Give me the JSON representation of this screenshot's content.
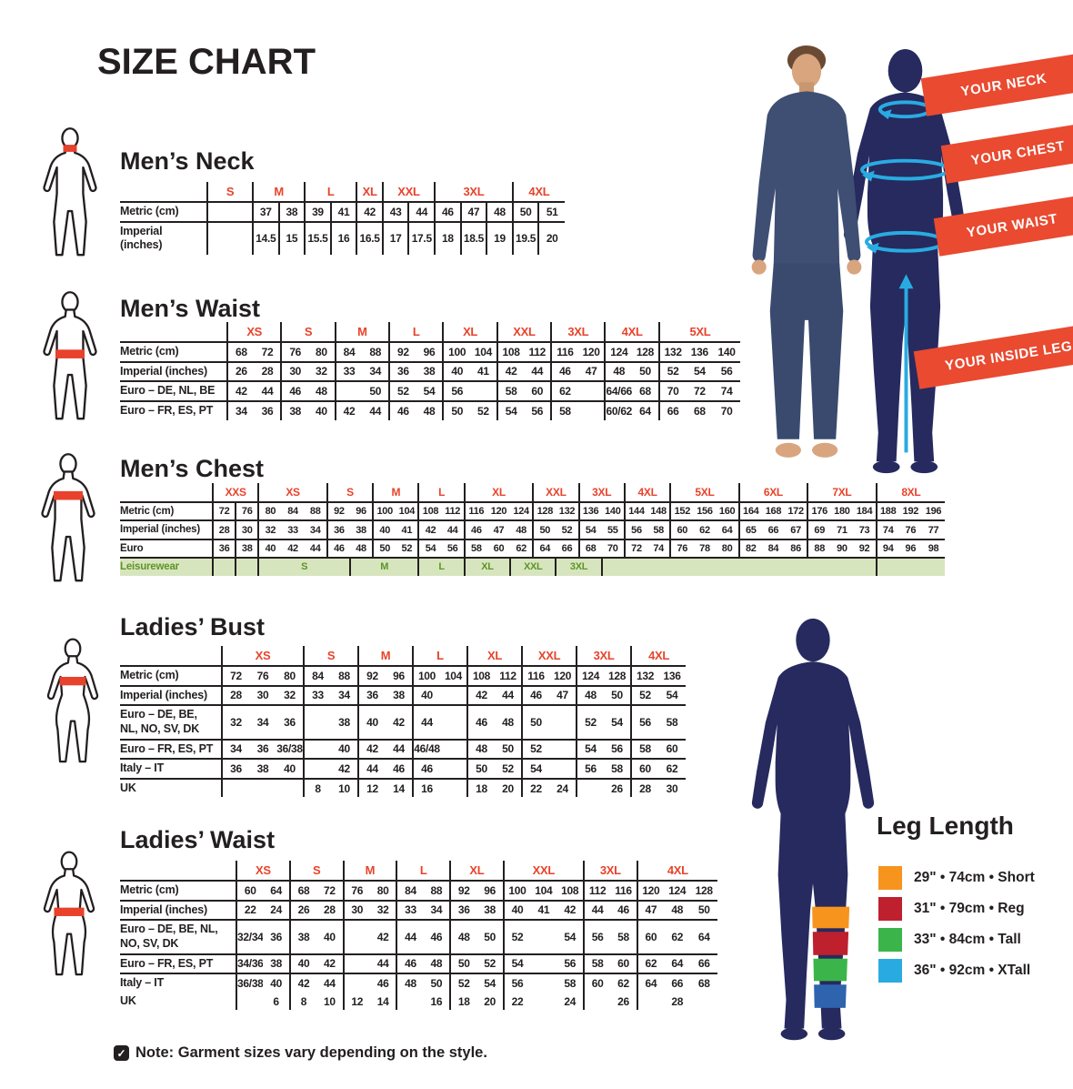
{
  "title": "SIZE CHART",
  "note": "Note: Garment sizes vary depending on the style.",
  "banners": [
    "YOUR NECK",
    "YOUR CHEST",
    "YOUR WAIST",
    "YOUR INSIDE LEG"
  ],
  "leg_length": {
    "title": "Leg Length",
    "items": [
      {
        "color": "#f7941e",
        "label": "29\" • 74cm • Short"
      },
      {
        "color": "#be202e",
        "label": "31\" • 79cm • Reg"
      },
      {
        "color": "#3bb54a",
        "label": "33\" • 84cm • Tall"
      },
      {
        "color": "#29abe2",
        "label": "36\" • 92cm • XTall"
      }
    ]
  },
  "colors": {
    "ink": "#231f20",
    "accent_red": "#e8432b",
    "banner_red": "#e94a30",
    "navy": "#262a5e",
    "cyan": "#29abe2",
    "leisure_bg": "#d7e5bf",
    "leisure_text": "#5f9426"
  },
  "icons": {
    "mens_neck_figure": "male-outline-neck-highlight",
    "mens_waist_figure": "male-outline-waist-highlight",
    "mens_chest_figure": "male-outline-chest-highlight",
    "ladies_bust_figure": "female-outline-bust-highlight",
    "ladies_waist_figure": "female-outline-waist-highlight",
    "note_check": "checkbox-check-icon"
  },
  "tables": [
    {
      "title": "Men’s Neck",
      "label_w": 96,
      "first_col_w": 50,
      "all_dividers": true,
      "groups": [
        {
          "l": "S",
          "s": 1
        },
        {
          "l": "M",
          "s": 2
        },
        {
          "l": "L",
          "s": 2
        },
        {
          "l": "XL",
          "s": 1
        },
        {
          "l": "XXL",
          "s": 2
        },
        {
          "l": "3XL",
          "s": 3
        },
        {
          "l": "4XL",
          "s": 2
        }
      ],
      "rows": [
        {
          "label": "Metric (cm)",
          "cells": [
            "",
            "37",
            "38",
            "39",
            "41",
            "42",
            "43",
            "44",
            "46",
            "47",
            "48",
            "50",
            "51"
          ]
        },
        {
          "label": "Imperial (inches)",
          "cells": [
            "",
            "14.5",
            "15",
            "15.5",
            "16",
            "16.5",
            "17",
            "17.5",
            "18",
            "18.5",
            "19",
            "19.5",
            "20"
          ]
        }
      ]
    },
    {
      "title": "Men’s Waist",
      "label_w": 118,
      "groups": [
        {
          "l": "XS",
          "s": 2
        },
        {
          "l": "S",
          "s": 2
        },
        {
          "l": "M",
          "s": 2
        },
        {
          "l": "L",
          "s": 2
        },
        {
          "l": "XL",
          "s": 2
        },
        {
          "l": "XXL",
          "s": 2
        },
        {
          "l": "3XL",
          "s": 2
        },
        {
          "l": "4XL",
          "s": 2
        },
        {
          "l": "5XL",
          "s": 3
        }
      ],
      "rows": [
        {
          "label": "Metric (cm)",
          "cells": [
            "68",
            "72",
            "76",
            "80",
            "84",
            "88",
            "92",
            "96",
            "100",
            "104",
            "108",
            "112",
            "116",
            "120",
            "124",
            "128",
            "132",
            "136",
            "140"
          ]
        },
        {
          "label": "Imperial (inches)",
          "cells": [
            "26",
            "28",
            "30",
            "32",
            "33",
            "34",
            "36",
            "38",
            "40",
            "41",
            "42",
            "44",
            "46",
            "47",
            "48",
            "50",
            "52",
            "54",
            "56"
          ]
        },
        {
          "label": "Euro – DE, NL, BE",
          "cells": [
            "42",
            "44",
            "46",
            "48",
            "",
            "50",
            "52",
            "54",
            "56",
            "",
            "58",
            "60",
            "62",
            "",
            "64/66",
            "68",
            "70",
            "72",
            "74"
          ]
        },
        {
          "label": "Euro – FR, ES, PT",
          "cells": [
            "34",
            "36",
            "38",
            "40",
            "42",
            "44",
            "46",
            "48",
            "50",
            "52",
            "54",
            "56",
            "58",
            "",
            "60/62",
            "64",
            "66",
            "68",
            "70"
          ]
        }
      ]
    },
    {
      "title": "Men’s Chest",
      "label_w": 102,
      "cls": "c-small",
      "extra_dividers": [
        2
      ],
      "groups": [
        {
          "l": "XXS",
          "s": 2
        },
        {
          "l": "XS",
          "s": 3
        },
        {
          "l": "S",
          "s": 2
        },
        {
          "l": "M",
          "s": 2
        },
        {
          "l": "L",
          "s": 2
        },
        {
          "l": "XL",
          "s": 3
        },
        {
          "l": "XXL",
          "s": 2
        },
        {
          "l": "3XL",
          "s": 2
        },
        {
          "l": "4XL",
          "s": 2
        },
        {
          "l": "5XL",
          "s": 3
        },
        {
          "l": "6XL",
          "s": 3
        },
        {
          "l": "7XL",
          "s": 3
        },
        {
          "l": "8XL",
          "s": 3
        }
      ],
      "rows": [
        {
          "label": "Metric (cm)",
          "cells": [
            "72",
            "76",
            "80",
            "84",
            "88",
            "92",
            "96",
            "100",
            "104",
            "108",
            "112",
            "116",
            "120",
            "124",
            "128",
            "132",
            "136",
            "140",
            "144",
            "148",
            "152",
            "156",
            "160",
            "164",
            "168",
            "172",
            "176",
            "180",
            "184",
            "188",
            "192",
            "196"
          ]
        },
        {
          "label": "Imperial (inches)",
          "cells": [
            "28",
            "30",
            "32",
            "33",
            "34",
            "36",
            "38",
            "40",
            "41",
            "42",
            "44",
            "46",
            "47",
            "48",
            "50",
            "52",
            "54",
            "55",
            "56",
            "58",
            "60",
            "62",
            "64",
            "65",
            "66",
            "67",
            "69",
            "71",
            "73",
            "74",
            "76",
            "77"
          ]
        },
        {
          "label": "Euro",
          "cells": [
            "36",
            "38",
            "40",
            "42",
            "44",
            "46",
            "48",
            "50",
            "52",
            "54",
            "56",
            "58",
            "60",
            "62",
            "64",
            "66",
            "68",
            "70",
            "72",
            "74",
            "76",
            "78",
            "80",
            "82",
            "84",
            "86",
            "88",
            "90",
            "92",
            "94",
            "96",
            "98"
          ]
        },
        {
          "label": "Leisurewear",
          "variant": "leisure",
          "all_vl": true,
          "cells": [
            {
              "t": "",
              "s": 1
            },
            {
              "t": "",
              "s": 1
            },
            {
              "t": "S",
              "s": 4
            },
            {
              "t": "M",
              "s": 3
            },
            {
              "t": "L",
              "s": 2
            },
            {
              "t": "XL",
              "s": 2
            },
            {
              "t": "XXL",
              "s": 2
            },
            {
              "t": "3XL",
              "s": 2
            },
            {
              "t": "",
              "s": 12
            },
            {
              "t": "",
              "s": 3
            }
          ]
        }
      ]
    },
    {
      "title": "Ladies’ Bust",
      "label_w": 112,
      "groups": [
        {
          "l": "XS",
          "s": 3
        },
        {
          "l": "S",
          "s": 2
        },
        {
          "l": "M",
          "s": 2
        },
        {
          "l": "L",
          "s": 2
        },
        {
          "l": "XL",
          "s": 2
        },
        {
          "l": "XXL",
          "s": 2
        },
        {
          "l": "3XL",
          "s": 2
        },
        {
          "l": "4XL",
          "s": 2
        }
      ],
      "rows": [
        {
          "label": "Metric (cm)",
          "cells": [
            "72",
            "76",
            "80",
            "84",
            "88",
            "92",
            "96",
            "100",
            "104",
            "108",
            "112",
            "116",
            "120",
            "124",
            "128",
            "132",
            "136"
          ]
        },
        {
          "label": "Imperial (inches)",
          "cells": [
            "28",
            "30",
            "32",
            "33",
            "34",
            "36",
            "38",
            "40",
            "",
            "42",
            "44",
            "46",
            "47",
            "48",
            "50",
            "52",
            "54"
          ]
        },
        {
          "label": "Euro –  DE, BE, NL, NO, SV, DK",
          "cells": [
            "32",
            "34",
            "36",
            "",
            "38",
            "40",
            "42",
            "44",
            "",
            "46",
            "48",
            "50",
            "",
            "52",
            "54",
            "56",
            "58"
          ]
        },
        {
          "label": "Euro – FR, ES, PT",
          "cells": [
            "34",
            "36",
            "36/38",
            "",
            "40",
            "42",
            "44",
            "46/48",
            "",
            "48",
            "50",
            "52",
            "",
            "54",
            "56",
            "58",
            "60"
          ]
        },
        {
          "label": "Italy – IT",
          "cells": [
            "36",
            "38",
            "40",
            "",
            "42",
            "44",
            "46",
            "46",
            "",
            "50",
            "52",
            "54",
            "",
            "56",
            "58",
            "60",
            "62"
          ]
        },
        {
          "label": "UK",
          "cells": [
            "",
            "",
            "",
            "8",
            "10",
            "12",
            "14",
            "16",
            "",
            "18",
            "20",
            "22",
            "24",
            "",
            "26",
            "28",
            "30"
          ]
        }
      ]
    },
    {
      "title": "Ladies’ Waist",
      "label_w": 128,
      "groups": [
        {
          "l": "XS",
          "s": 2
        },
        {
          "l": "S",
          "s": 2
        },
        {
          "l": "M",
          "s": 2
        },
        {
          "l": "L",
          "s": 2
        },
        {
          "l": "XL",
          "s": 2
        },
        {
          "l": "XXL",
          "s": 3
        },
        {
          "l": "3XL",
          "s": 2
        },
        {
          "l": "4XL",
          "s": 3
        }
      ],
      "rows": [
        {
          "label": "Metric (cm)",
          "cells": [
            "60",
            "64",
            "68",
            "72",
            "76",
            "80",
            "84",
            "88",
            "92",
            "96",
            "100",
            "104",
            "108",
            "112",
            "116",
            "120",
            "124",
            "128"
          ]
        },
        {
          "label": "Imperial (inches)",
          "cells": [
            "22",
            "24",
            "26",
            "28",
            "30",
            "32",
            "33",
            "34",
            "36",
            "38",
            "40",
            "41",
            "42",
            "44",
            "46",
            "47",
            "48",
            "50"
          ]
        },
        {
          "label": "Euro – DE, BE, NL, NO, SV, DK",
          "cells": [
            "32/34",
            "36",
            "38",
            "40",
            "",
            "42",
            "44",
            "46",
            "48",
            "50",
            "52",
            "",
            "54",
            "56",
            "58",
            "60",
            "62",
            "64"
          ]
        },
        {
          "label": "Euro – FR, ES, PT",
          "cells": [
            "34/36",
            "38",
            "40",
            "42",
            "",
            "44",
            "46",
            "48",
            "50",
            "52",
            "54",
            "",
            "56",
            "58",
            "60",
            "62",
            "64",
            "66"
          ]
        },
        {
          "label": "Italy – IT",
          "cells": [
            "36/38",
            "40",
            "42",
            "44",
            "",
            "46",
            "48",
            "50",
            "52",
            "54",
            "56",
            "",
            "58",
            "60",
            "62",
            "64",
            "66",
            "68"
          ]
        },
        {
          "label": "UK",
          "no_top": true,
          "cells": [
            "",
            "6",
            "8",
            "10",
            "12",
            "14",
            "",
            "16",
            "18",
            "20",
            "22",
            "",
            "24",
            "",
            "26",
            "",
            "28",
            ""
          ]
        }
      ]
    }
  ]
}
